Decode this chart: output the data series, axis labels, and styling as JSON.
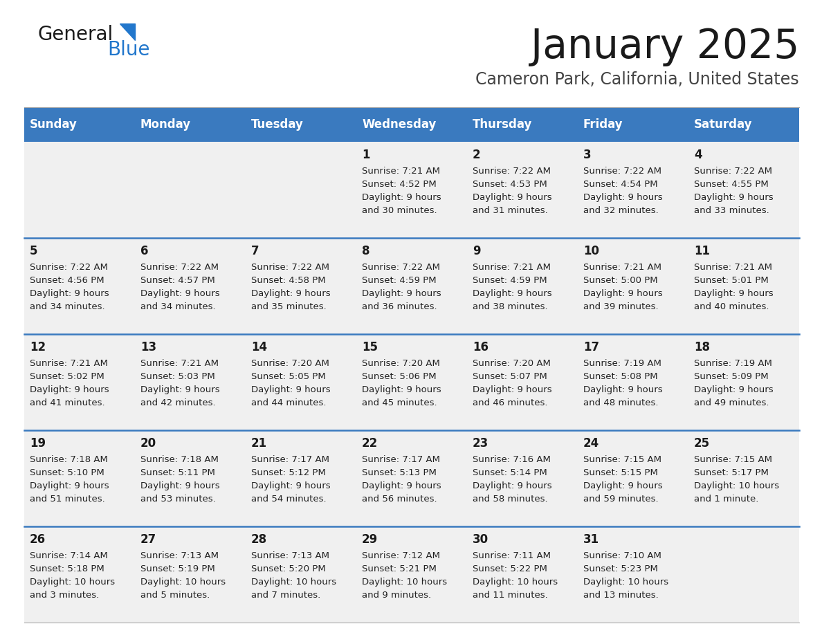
{
  "title": "January 2025",
  "subtitle": "Cameron Park, California, United States",
  "header_color": "#3a7abf",
  "header_text_color": "#ffffff",
  "cell_bg_color": "#f0f0f0",
  "separator_color": "#3a7abf",
  "text_color": "#222222",
  "days_of_week": [
    "Sunday",
    "Monday",
    "Tuesday",
    "Wednesday",
    "Thursday",
    "Friday",
    "Saturday"
  ],
  "weeks": [
    [
      {
        "day": "",
        "sunrise": "",
        "sunset": "",
        "daylight": ""
      },
      {
        "day": "",
        "sunrise": "",
        "sunset": "",
        "daylight": ""
      },
      {
        "day": "",
        "sunrise": "",
        "sunset": "",
        "daylight": ""
      },
      {
        "day": "1",
        "sunrise": "7:21 AM",
        "sunset": "4:52 PM",
        "daylight_hrs": "9 hours",
        "daylight_min": "and 30 minutes."
      },
      {
        "day": "2",
        "sunrise": "7:22 AM",
        "sunset": "4:53 PM",
        "daylight_hrs": "9 hours",
        "daylight_min": "and 31 minutes."
      },
      {
        "day": "3",
        "sunrise": "7:22 AM",
        "sunset": "4:54 PM",
        "daylight_hrs": "9 hours",
        "daylight_min": "and 32 minutes."
      },
      {
        "day": "4",
        "sunrise": "7:22 AM",
        "sunset": "4:55 PM",
        "daylight_hrs": "9 hours",
        "daylight_min": "and 33 minutes."
      }
    ],
    [
      {
        "day": "5",
        "sunrise": "7:22 AM",
        "sunset": "4:56 PM",
        "daylight_hrs": "9 hours",
        "daylight_min": "and 34 minutes."
      },
      {
        "day": "6",
        "sunrise": "7:22 AM",
        "sunset": "4:57 PM",
        "daylight_hrs": "9 hours",
        "daylight_min": "and 34 minutes."
      },
      {
        "day": "7",
        "sunrise": "7:22 AM",
        "sunset": "4:58 PM",
        "daylight_hrs": "9 hours",
        "daylight_min": "and 35 minutes."
      },
      {
        "day": "8",
        "sunrise": "7:22 AM",
        "sunset": "4:59 PM",
        "daylight_hrs": "9 hours",
        "daylight_min": "and 36 minutes."
      },
      {
        "day": "9",
        "sunrise": "7:21 AM",
        "sunset": "4:59 PM",
        "daylight_hrs": "9 hours",
        "daylight_min": "and 38 minutes."
      },
      {
        "day": "10",
        "sunrise": "7:21 AM",
        "sunset": "5:00 PM",
        "daylight_hrs": "9 hours",
        "daylight_min": "and 39 minutes."
      },
      {
        "day": "11",
        "sunrise": "7:21 AM",
        "sunset": "5:01 PM",
        "daylight_hrs": "9 hours",
        "daylight_min": "and 40 minutes."
      }
    ],
    [
      {
        "day": "12",
        "sunrise": "7:21 AM",
        "sunset": "5:02 PM",
        "daylight_hrs": "9 hours",
        "daylight_min": "and 41 minutes."
      },
      {
        "day": "13",
        "sunrise": "7:21 AM",
        "sunset": "5:03 PM",
        "daylight_hrs": "9 hours",
        "daylight_min": "and 42 minutes."
      },
      {
        "day": "14",
        "sunrise": "7:20 AM",
        "sunset": "5:05 PM",
        "daylight_hrs": "9 hours",
        "daylight_min": "and 44 minutes."
      },
      {
        "day": "15",
        "sunrise": "7:20 AM",
        "sunset": "5:06 PM",
        "daylight_hrs": "9 hours",
        "daylight_min": "and 45 minutes."
      },
      {
        "day": "16",
        "sunrise": "7:20 AM",
        "sunset": "5:07 PM",
        "daylight_hrs": "9 hours",
        "daylight_min": "and 46 minutes."
      },
      {
        "day": "17",
        "sunrise": "7:19 AM",
        "sunset": "5:08 PM",
        "daylight_hrs": "9 hours",
        "daylight_min": "and 48 minutes."
      },
      {
        "day": "18",
        "sunrise": "7:19 AM",
        "sunset": "5:09 PM",
        "daylight_hrs": "9 hours",
        "daylight_min": "and 49 minutes."
      }
    ],
    [
      {
        "day": "19",
        "sunrise": "7:18 AM",
        "sunset": "5:10 PM",
        "daylight_hrs": "9 hours",
        "daylight_min": "and 51 minutes."
      },
      {
        "day": "20",
        "sunrise": "7:18 AM",
        "sunset": "5:11 PM",
        "daylight_hrs": "9 hours",
        "daylight_min": "and 53 minutes."
      },
      {
        "day": "21",
        "sunrise": "7:17 AM",
        "sunset": "5:12 PM",
        "daylight_hrs": "9 hours",
        "daylight_min": "and 54 minutes."
      },
      {
        "day": "22",
        "sunrise": "7:17 AM",
        "sunset": "5:13 PM",
        "daylight_hrs": "9 hours",
        "daylight_min": "and 56 minutes."
      },
      {
        "day": "23",
        "sunrise": "7:16 AM",
        "sunset": "5:14 PM",
        "daylight_hrs": "9 hours",
        "daylight_min": "and 58 minutes."
      },
      {
        "day": "24",
        "sunrise": "7:15 AM",
        "sunset": "5:15 PM",
        "daylight_hrs": "9 hours",
        "daylight_min": "and 59 minutes."
      },
      {
        "day": "25",
        "sunrise": "7:15 AM",
        "sunset": "5:17 PM",
        "daylight_hrs": "10 hours",
        "daylight_min": "and 1 minute."
      }
    ],
    [
      {
        "day": "26",
        "sunrise": "7:14 AM",
        "sunset": "5:18 PM",
        "daylight_hrs": "10 hours",
        "daylight_min": "and 3 minutes."
      },
      {
        "day": "27",
        "sunrise": "7:13 AM",
        "sunset": "5:19 PM",
        "daylight_hrs": "10 hours",
        "daylight_min": "and 5 minutes."
      },
      {
        "day": "28",
        "sunrise": "7:13 AM",
        "sunset": "5:20 PM",
        "daylight_hrs": "10 hours",
        "daylight_min": "and 7 minutes."
      },
      {
        "day": "29",
        "sunrise": "7:12 AM",
        "sunset": "5:21 PM",
        "daylight_hrs": "10 hours",
        "daylight_min": "and 9 minutes."
      },
      {
        "day": "30",
        "sunrise": "7:11 AM",
        "sunset": "5:22 PM",
        "daylight_hrs": "10 hours",
        "daylight_min": "and 11 minutes."
      },
      {
        "day": "31",
        "sunrise": "7:10 AM",
        "sunset": "5:23 PM",
        "daylight_hrs": "10 hours",
        "daylight_min": "and 13 minutes."
      },
      {
        "day": "",
        "sunrise": "",
        "sunset": "",
        "daylight_hrs": "",
        "daylight_min": ""
      }
    ]
  ]
}
